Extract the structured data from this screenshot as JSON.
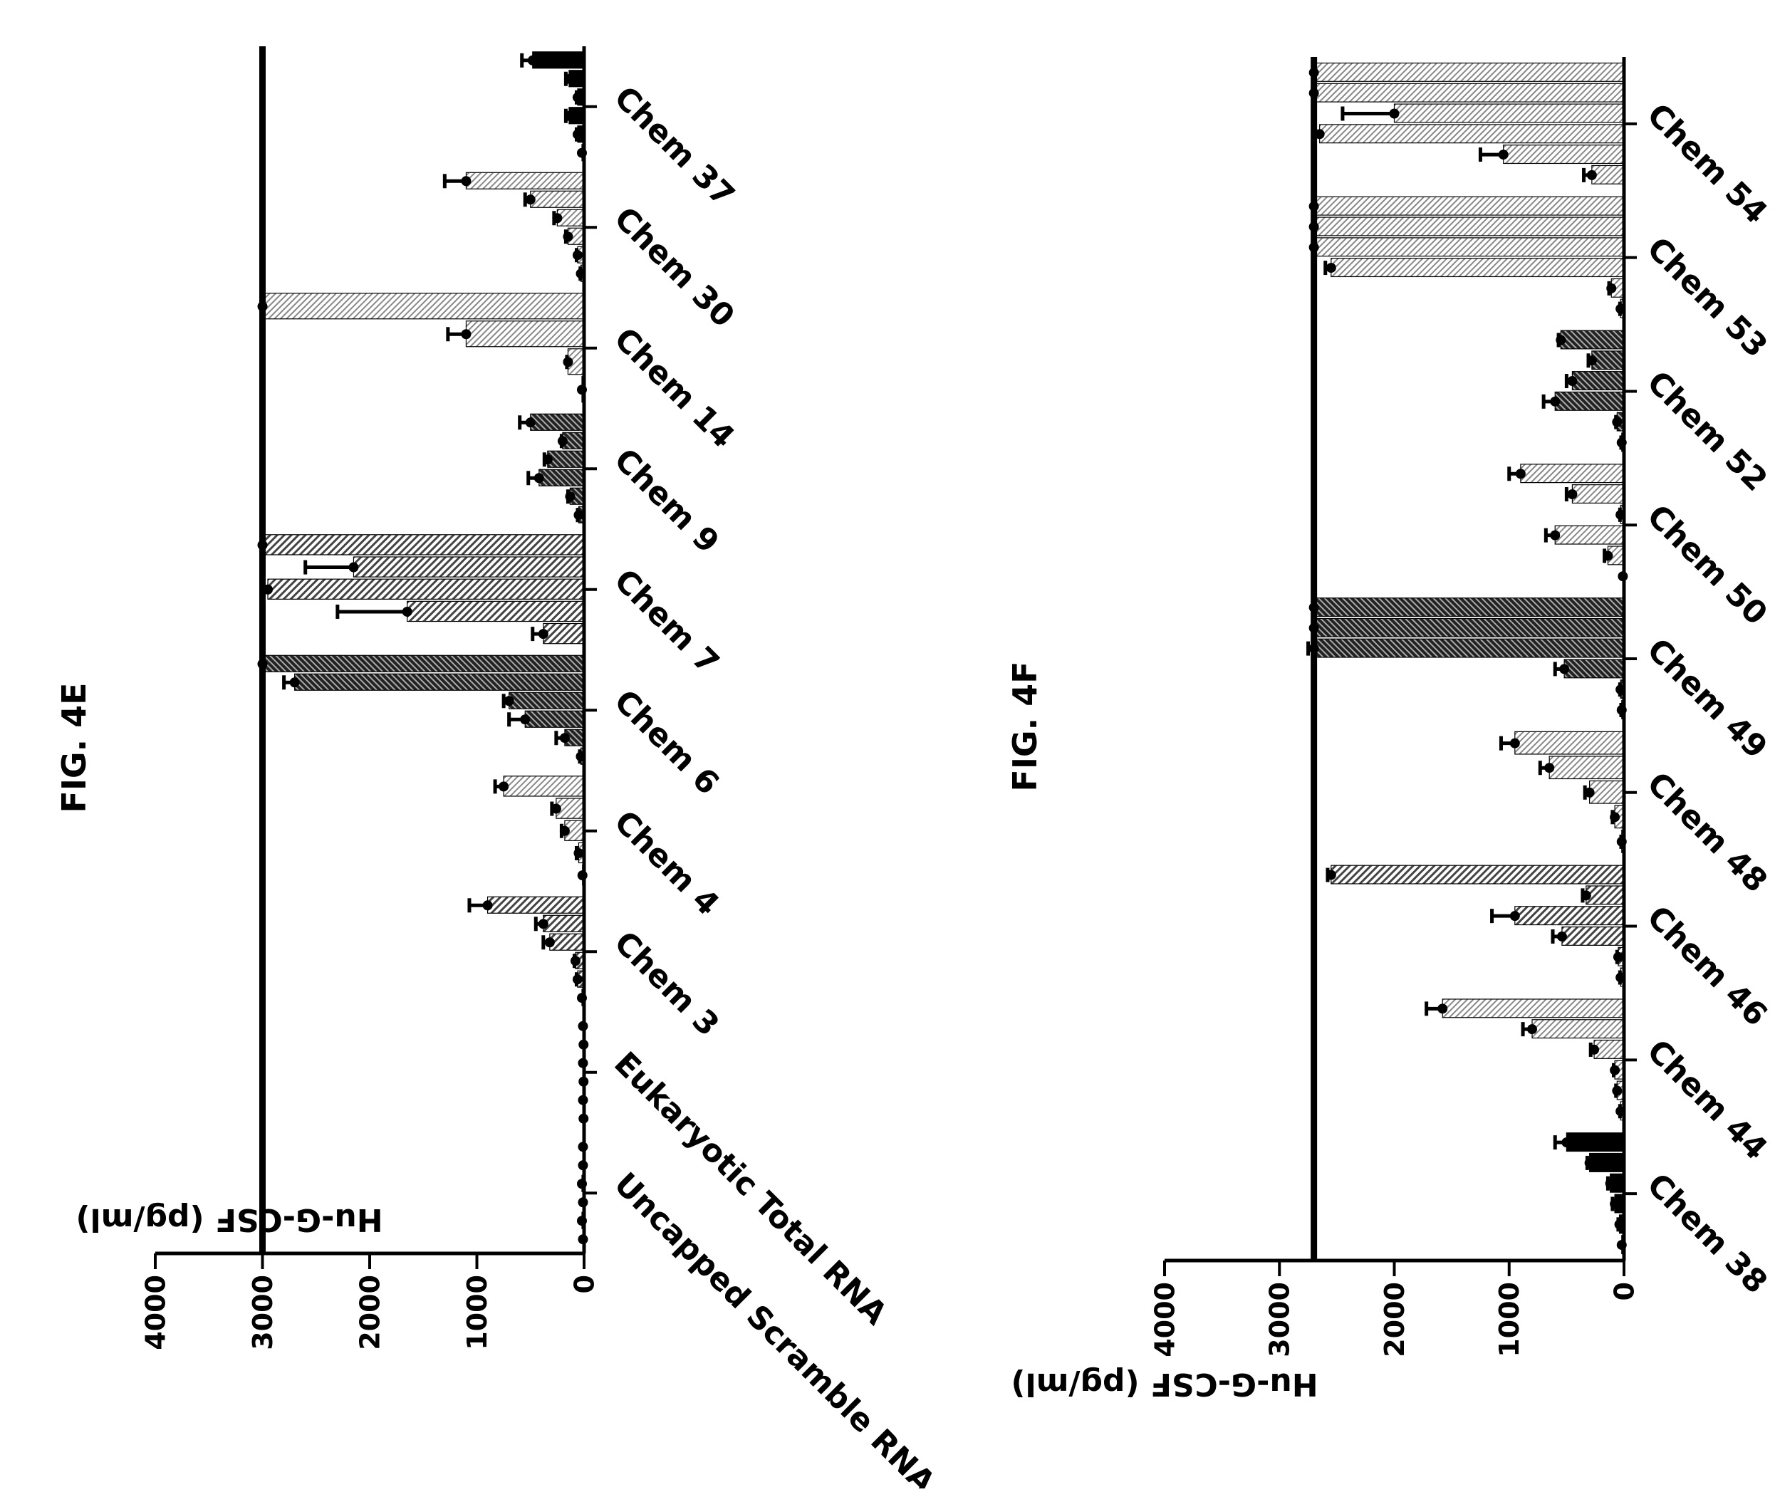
{
  "figures": [
    {
      "title": "FIG. 4E",
      "ylabel": "Hu-G-CSF (pg/ml)",
      "ticks": [
        "0",
        "1000",
        "2000",
        "3000",
        "4000"
      ],
      "categories": [
        "Uncapped Scramble RNA",
        "Eukaryotic Total RNA",
        "Chem 3",
        "Chem 4",
        "Chem 6",
        "Chem 7",
        "Chem 9",
        "Chem 14",
        "Chem 30",
        "Chem 37"
      ]
    },
    {
      "title": "FIG. 4F",
      "ylabel": "Hu-G-CSF (pg/ml)",
      "ticks": [
        "0",
        "1000",
        "2000",
        "3000",
        "4000"
      ],
      "categories": [
        "Chem 38",
        "Chem 44",
        "Chem 46",
        "Chem 48",
        "Chem 49",
        "Chem 50",
        "Chem 52",
        "Chem 53",
        "Chem 54"
      ]
    }
  ],
  "chart_data": [
    {
      "type": "bar",
      "title": "FIG. 4E",
      "ylabel": "Hu-G-CSF (pg/ml)",
      "ylim": [
        0,
        4000
      ],
      "reference_line": 3000,
      "categories": [
        "Uncapped Scramble RNA",
        "Eukaryotic Total RNA",
        "Chem 3",
        "Chem 4",
        "Chem 6",
        "Chem 7",
        "Chem 9",
        "Chem 14",
        "Chem 30",
        "Chem 37"
      ],
      "groups": [
        {
          "category": "Uncapped Scramble RNA",
          "pattern": "dots",
          "values": [
            10,
            20,
            10,
            20,
            10,
            10
          ],
          "errors": [
            0,
            0,
            0,
            0,
            0,
            0
          ]
        },
        {
          "category": "Eukaryotic Total RNA",
          "pattern": "dots",
          "values": [
            5,
            10,
            5,
            10,
            5,
            10
          ],
          "errors": [
            0,
            0,
            0,
            0,
            0,
            0
          ]
        },
        {
          "category": "Chem 3",
          "pattern": "diag",
          "values": [
            20,
            60,
            80,
            320,
            380,
            900
          ],
          "errors": [
            0,
            10,
            10,
            60,
            70,
            170
          ]
        },
        {
          "category": "Chem 4",
          "pattern": "light",
          "values": [
            15,
            50,
            180,
            260,
            750
          ],
          "errors": [
            0,
            20,
            30,
            40,
            80
          ]
        },
        {
          "category": "Chem 6",
          "pattern": "dark",
          "values": [
            30,
            180,
            550,
            700,
            2700,
            3000
          ],
          "errors": [
            10,
            80,
            150,
            50,
            100,
            0
          ]
        },
        {
          "category": "Chem 7",
          "pattern": "diag",
          "values": [
            380,
            1650,
            2950,
            2150,
            3000
          ],
          "errors": [
            100,
            650,
            0,
            450,
            0
          ]
        },
        {
          "category": "Chem 9",
          "pattern": "dark",
          "values": [
            50,
            130,
            420,
            340,
            200,
            500
          ],
          "errors": [
            10,
            20,
            100,
            30,
            10,
            100
          ]
        },
        {
          "category": "Chem 14",
          "pattern": "light",
          "values": [
            20,
            150,
            1100,
            3000
          ],
          "errors": [
            0,
            10,
            170,
            0
          ]
        },
        {
          "category": "Chem 30",
          "pattern": "light",
          "values": [
            30,
            60,
            150,
            250,
            500,
            1100
          ],
          "errors": [
            5,
            10,
            20,
            30,
            50,
            200
          ]
        },
        {
          "category": "Chem 37",
          "pattern": "solid",
          "values": [
            20,
            60,
            140,
            60,
            140,
            480
          ],
          "errors": [
            0,
            10,
            30,
            10,
            30,
            100
          ]
        }
      ]
    },
    {
      "type": "bar",
      "title": "FIG. 4F",
      "ylabel": "Hu-G-CSF (pg/ml)",
      "ylim": [
        0,
        4000
      ],
      "reference_line": 2700,
      "categories": [
        "Chem 38",
        "Chem 44",
        "Chem 46",
        "Chem 48",
        "Chem 49",
        "Chem 50",
        "Chem 52",
        "Chem 53",
        "Chem 54"
      ],
      "groups": [
        {
          "category": "Chem 38",
          "pattern": "solid",
          "values": [
            20,
            40,
            80,
            120,
            300,
            500
          ],
          "errors": [
            0,
            10,
            20,
            20,
            20,
            100
          ]
        },
        {
          "category": "Chem 44",
          "pattern": "light",
          "values": [
            30,
            60,
            80,
            260,
            800,
            1580
          ],
          "errors": [
            5,
            10,
            10,
            30,
            80,
            140
          ]
        },
        {
          "category": "Chem 46",
          "pattern": "diag",
          "values": [
            30,
            50,
            540,
            950,
            330,
            2550
          ],
          "errors": [
            5,
            10,
            80,
            200,
            30,
            30
          ]
        },
        {
          "category": "Chem 48",
          "pattern": "light",
          "values": [
            20,
            80,
            300,
            650,
            950
          ],
          "errors": [
            5,
            20,
            40,
            80,
            120
          ]
        },
        {
          "category": "Chem 49",
          "pattern": "dark",
          "values": [
            20,
            30,
            520,
            2700,
            2700,
            2700
          ],
          "errors": [
            5,
            5,
            80,
            50,
            0,
            0
          ]
        },
        {
          "category": "Chem 50",
          "pattern": "light",
          "values": [
            10,
            140,
            600,
            30,
            450,
            900
          ],
          "errors": [
            0,
            30,
            80,
            5,
            50,
            100
          ]
        },
        {
          "category": "Chem 52",
          "pattern": "dark",
          "values": [
            20,
            60,
            600,
            450,
            280,
            550
          ],
          "errors": [
            5,
            10,
            100,
            50,
            30,
            20
          ]
        },
        {
          "category": "Chem 53",
          "pattern": "light",
          "values": [
            30,
            110,
            2550,
            2700,
            2700,
            2700
          ],
          "errors": [
            5,
            20,
            50,
            0,
            0,
            0
          ]
        },
        {
          "category": "Chem 54",
          "pattern": "light",
          "values": [
            280,
            1050,
            2650,
            2000,
            2700,
            2700
          ],
          "errors": [
            70,
            200,
            0,
            450,
            0,
            0
          ]
        }
      ]
    }
  ]
}
